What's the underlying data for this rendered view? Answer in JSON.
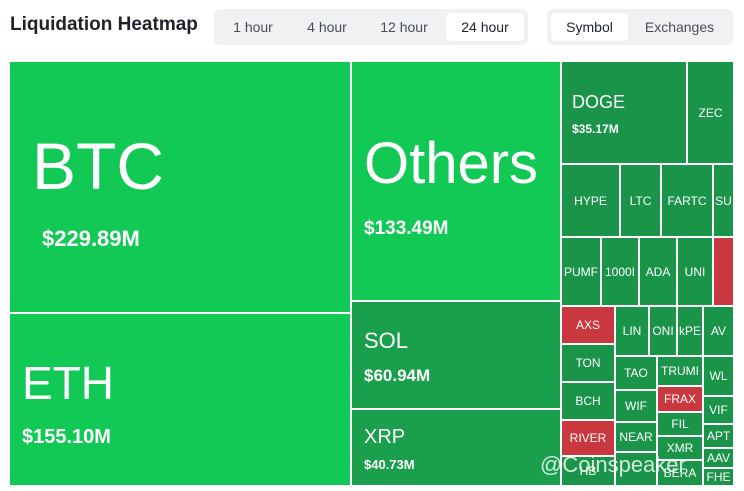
{
  "header": {
    "title": "Liquidation Heatmap",
    "time_tabs": [
      "1 hour",
      "4 hour",
      "12 hour",
      "24 hour"
    ],
    "active_time_tab": 3,
    "view_tabs": [
      "Symbol",
      "Exchanges"
    ],
    "active_view_tab": 0
  },
  "heatmap": {
    "tiles": [
      {
        "label": "BTC",
        "value": "$229.89M",
        "color": "#12c955"
      },
      {
        "label": "ETH",
        "value": "$155.10M",
        "color": "#12c955"
      },
      {
        "label": "Others",
        "value": "$133.49M",
        "color": "#12c955"
      },
      {
        "label": "SOL",
        "value": "$60.94M",
        "color": "#1a9f4c"
      },
      {
        "label": "XRP",
        "value": "$40.73M",
        "color": "#1a9f4c"
      },
      {
        "label": "DOGE",
        "value": "$35.17M",
        "color": "#1a9448"
      },
      {
        "label": "ZEC",
        "color": "#1a9448"
      },
      {
        "label": "HYPE",
        "color": "#1a9448"
      },
      {
        "label": "LTC",
        "color": "#1a9448"
      },
      {
        "label": "FARTC",
        "color": "#1a9448"
      },
      {
        "label": "SU",
        "color": "#1a9448"
      },
      {
        "label": "PUMF",
        "color": "#1a9448"
      },
      {
        "label": "1000I",
        "color": "#1a9448"
      },
      {
        "label": "ADA",
        "color": "#1a9448"
      },
      {
        "label": "UNI",
        "color": "#1a9448"
      },
      {
        "label": "",
        "color": "#c9383f"
      },
      {
        "label": "AXS",
        "color": "#c9383f"
      },
      {
        "label": "TON",
        "color": "#1a9448"
      },
      {
        "label": "BCH",
        "color": "#1a9448"
      },
      {
        "label": "RIVER",
        "color": "#c9383f"
      },
      {
        "label": "HB",
        "color": "#1a9448"
      },
      {
        "label": "LIN",
        "color": "#1a9448"
      },
      {
        "label": "ONI",
        "color": "#1a9448"
      },
      {
        "label": "kPE",
        "color": "#1a9448"
      },
      {
        "label": "AV",
        "color": "#1a9448"
      },
      {
        "label": "TAO",
        "color": "#1a9448"
      },
      {
        "label": "TRUMI",
        "color": "#1a9448"
      },
      {
        "label": "WL",
        "color": "#1a9448"
      },
      {
        "label": "WIF",
        "color": "#1a9448"
      },
      {
        "label": "FRAX",
        "color": "#c9383f"
      },
      {
        "label": "VIF",
        "color": "#1a9448"
      },
      {
        "label": "NEAR",
        "color": "#1a9448"
      },
      {
        "label": "FIL",
        "color": "#1a9448"
      },
      {
        "label": "APT",
        "color": "#1a9448"
      },
      {
        "label": "XMR",
        "color": "#1a9448"
      },
      {
        "label": "AAV",
        "color": "#1a9448"
      },
      {
        "label": "BERA",
        "color": "#1a9448"
      },
      {
        "label": "FHE",
        "color": "#1a9448"
      },
      {
        "label": "",
        "color": "#1a9448"
      }
    ]
  },
  "watermark": "@Coinspeaker"
}
